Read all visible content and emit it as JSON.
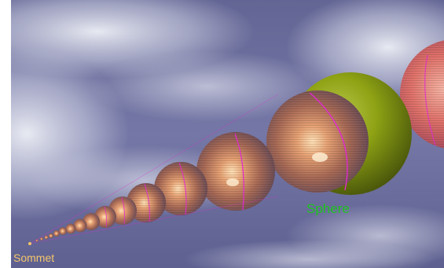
{
  "labels": {
    "sphere": "Sphere",
    "sommet": "Sommet"
  },
  "colors": {
    "sky": "#6d6fa0",
    "sphere_label": "#1fc41f",
    "sommet_label": "#f3c56b",
    "meridian": "#e02ad0",
    "green_sphere": "#8ea214"
  }
}
